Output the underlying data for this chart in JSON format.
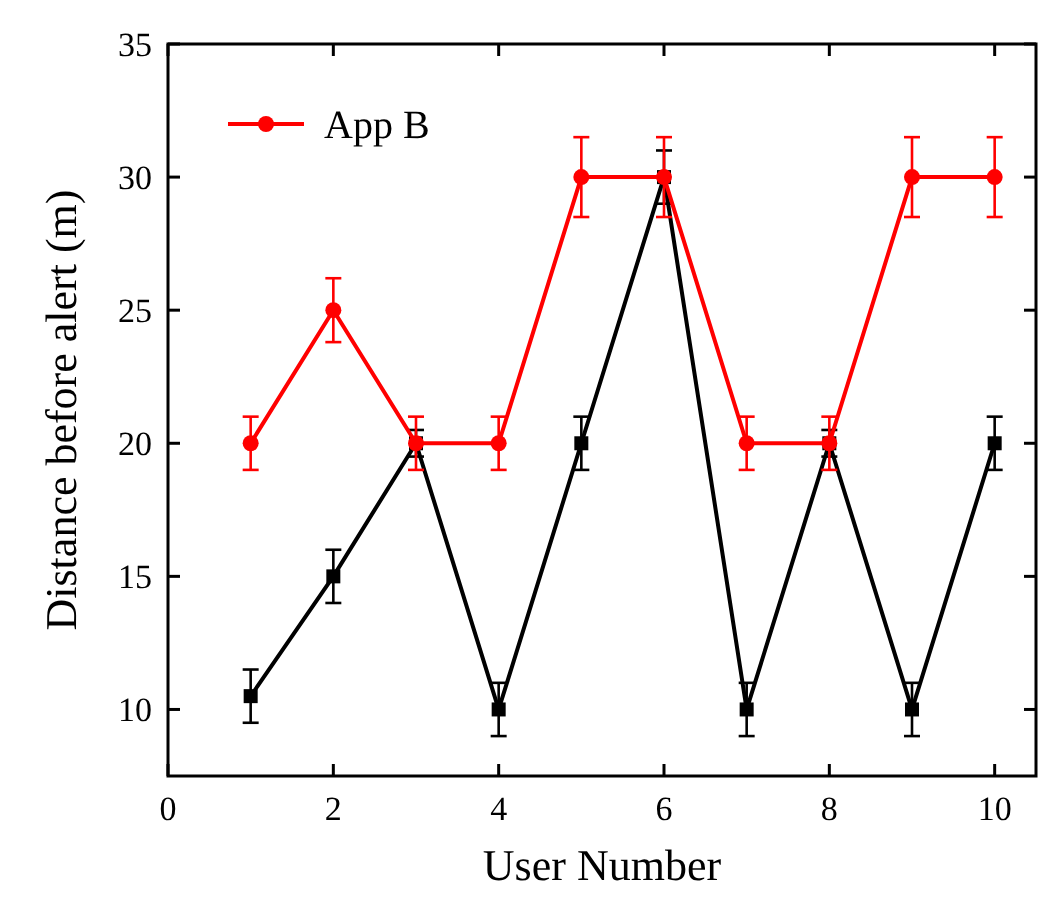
{
  "chart_data": {
    "type": "line",
    "xlabel": "User Number",
    "ylabel": "Distance before alert (m)",
    "x": [
      1,
      2,
      3,
      4,
      5,
      6,
      7,
      8,
      9,
      10
    ],
    "xlim": [
      0,
      10.5
    ],
    "xticks": [
      0,
      2,
      4,
      6,
      8,
      10
    ],
    "ylim": [
      7.5,
      35
    ],
    "yticks": [
      10,
      15,
      20,
      25,
      30,
      35
    ],
    "legend": "top left",
    "grid": false,
    "series": [
      {
        "color": "#000000",
        "marker": "square",
        "values": [
          10.5,
          15,
          20,
          10,
          20,
          30,
          10,
          20,
          10,
          20
        ],
        "errors": [
          1,
          1,
          0.5,
          1,
          1,
          1,
          1,
          0.5,
          1,
          1
        ]
      },
      {
        "name": "App B",
        "color": "#ff0000",
        "marker": "circle",
        "values": [
          20,
          25,
          20,
          20,
          30,
          30,
          20,
          20,
          30,
          30
        ],
        "errors": [
          1,
          1.2,
          1,
          1,
          1.5,
          1.5,
          1,
          1,
          1.5,
          1.5
        ]
      }
    ]
  }
}
